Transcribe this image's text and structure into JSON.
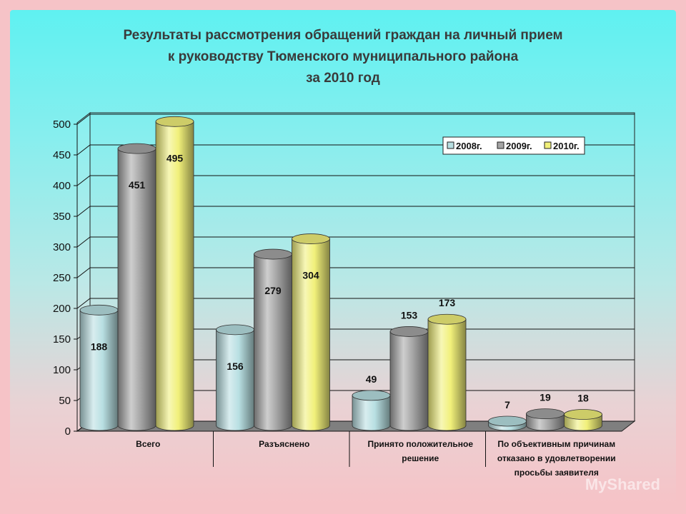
{
  "title": {
    "line1": "Результаты рассмотрения обращений граждан на личный прием",
    "line2": "к руководству Тюменского муниципального района",
    "line3": "за 2010 год"
  },
  "watermark": "MyShared",
  "colors": {
    "s2008": "#b8dfe2",
    "s2009": "#a5a5a5",
    "s2010": "#f1f07a"
  },
  "chart_data": {
    "type": "bar",
    "title": "Результаты рассмотрения обращений граждан на личный прием к руководству Тюменского муниципального района за 2010 год",
    "categories": [
      [
        "Всего"
      ],
      [
        "Разъяснено"
      ],
      [
        "Принято положительное",
        "решение"
      ],
      [
        "По объективным причинам",
        "отказано в удовлетворении",
        "просьбы заявителя"
      ]
    ],
    "series": [
      {
        "name": "2008г.",
        "values": [
          188,
          156,
          49,
          7
        ]
      },
      {
        "name": "2009г.",
        "values": [
          451,
          279,
          153,
          19
        ]
      },
      {
        "name": "2010г.",
        "values": [
          495,
          304,
          173,
          18
        ]
      }
    ],
    "ylim": [
      0,
      500
    ],
    "yticks": [
      0,
      50,
      100,
      150,
      200,
      250,
      300,
      350,
      400,
      450,
      500
    ],
    "grid": true,
    "legend": "top-right"
  }
}
